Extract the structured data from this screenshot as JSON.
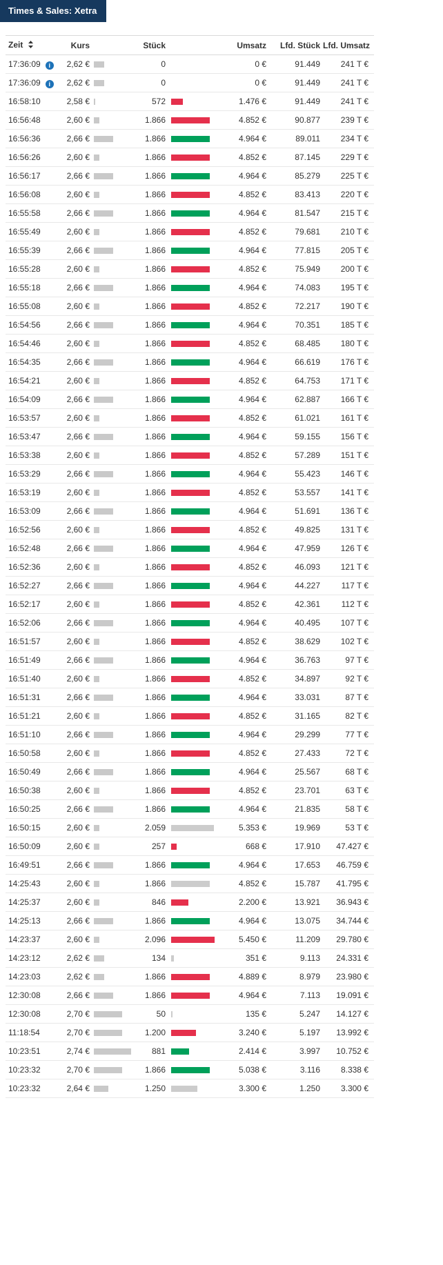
{
  "window": {
    "title": "Times & Sales: Xetra"
  },
  "colors": {
    "title_bg": "#16395e",
    "up_bar": "#00a05a",
    "down_bar": "#e5304c",
    "neutral_bar": "#cccccc",
    "price_bar": "#c9c9c9",
    "info_icon": "#1d72b8",
    "row_border": "#e8e8e8"
  },
  "table": {
    "columns": [
      {
        "key": "zeit",
        "label": "Zeit",
        "sortable": true
      },
      {
        "key": "kurs",
        "label": "Kurs"
      },
      {
        "key": "stueck",
        "label": "Stück"
      },
      {
        "key": "umsatz",
        "label": "Umsatz"
      },
      {
        "key": "lfd_stueck",
        "label": "Lfd. Stück"
      },
      {
        "key": "lfd_umsatz",
        "label": "Lfd. Umsatz"
      }
    ],
    "rows": [
      {
        "zeit": "17:36:09",
        "info": true,
        "kurs": "2,62 €",
        "kurs_val": 2.62,
        "stueck": "0",
        "stueck_val": 0,
        "dir": "none",
        "umsatz": "0 €",
        "lfd_stueck": "91.449",
        "lfd_umsatz": "241 T €"
      },
      {
        "zeit": "17:36:09",
        "info": true,
        "kurs": "2,62 €",
        "kurs_val": 2.62,
        "stueck": "0",
        "stueck_val": 0,
        "dir": "none",
        "umsatz": "0 €",
        "lfd_stueck": "91.449",
        "lfd_umsatz": "241 T €"
      },
      {
        "zeit": "16:58:10",
        "kurs": "2,58 €",
        "kurs_val": 2.58,
        "stueck": "572",
        "stueck_val": 572,
        "dir": "down",
        "umsatz": "1.476 €",
        "lfd_stueck": "91.449",
        "lfd_umsatz": "241 T €"
      },
      {
        "zeit": "16:56:48",
        "kurs": "2,60 €",
        "kurs_val": 2.6,
        "stueck": "1.866",
        "stueck_val": 1866,
        "dir": "down",
        "umsatz": "4.852 €",
        "lfd_stueck": "90.877",
        "lfd_umsatz": "239 T €"
      },
      {
        "zeit": "16:56:36",
        "kurs": "2,66 €",
        "kurs_val": 2.66,
        "stueck": "1.866",
        "stueck_val": 1866,
        "dir": "up",
        "umsatz": "4.964 €",
        "lfd_stueck": "89.011",
        "lfd_umsatz": "234 T €"
      },
      {
        "zeit": "16:56:26",
        "kurs": "2,60 €",
        "kurs_val": 2.6,
        "stueck": "1.866",
        "stueck_val": 1866,
        "dir": "down",
        "umsatz": "4.852 €",
        "lfd_stueck": "87.145",
        "lfd_umsatz": "229 T €"
      },
      {
        "zeit": "16:56:17",
        "kurs": "2,66 €",
        "kurs_val": 2.66,
        "stueck": "1.866",
        "stueck_val": 1866,
        "dir": "up",
        "umsatz": "4.964 €",
        "lfd_stueck": "85.279",
        "lfd_umsatz": "225 T €"
      },
      {
        "zeit": "16:56:08",
        "kurs": "2,60 €",
        "kurs_val": 2.6,
        "stueck": "1.866",
        "stueck_val": 1866,
        "dir": "down",
        "umsatz": "4.852 €",
        "lfd_stueck": "83.413",
        "lfd_umsatz": "220 T €"
      },
      {
        "zeit": "16:55:58",
        "kurs": "2,66 €",
        "kurs_val": 2.66,
        "stueck": "1.866",
        "stueck_val": 1866,
        "dir": "up",
        "umsatz": "4.964 €",
        "lfd_stueck": "81.547",
        "lfd_umsatz": "215 T €"
      },
      {
        "zeit": "16:55:49",
        "kurs": "2,60 €",
        "kurs_val": 2.6,
        "stueck": "1.866",
        "stueck_val": 1866,
        "dir": "down",
        "umsatz": "4.852 €",
        "lfd_stueck": "79.681",
        "lfd_umsatz": "210 T €"
      },
      {
        "zeit": "16:55:39",
        "kurs": "2,66 €",
        "kurs_val": 2.66,
        "stueck": "1.866",
        "stueck_val": 1866,
        "dir": "up",
        "umsatz": "4.964 €",
        "lfd_stueck": "77.815",
        "lfd_umsatz": "205 T €"
      },
      {
        "zeit": "16:55:28",
        "kurs": "2,60 €",
        "kurs_val": 2.6,
        "stueck": "1.866",
        "stueck_val": 1866,
        "dir": "down",
        "umsatz": "4.852 €",
        "lfd_stueck": "75.949",
        "lfd_umsatz": "200 T €"
      },
      {
        "zeit": "16:55:18",
        "kurs": "2,66 €",
        "kurs_val": 2.66,
        "stueck": "1.866",
        "stueck_val": 1866,
        "dir": "up",
        "umsatz": "4.964 €",
        "lfd_stueck": "74.083",
        "lfd_umsatz": "195 T €"
      },
      {
        "zeit": "16:55:08",
        "kurs": "2,60 €",
        "kurs_val": 2.6,
        "stueck": "1.866",
        "stueck_val": 1866,
        "dir": "down",
        "umsatz": "4.852 €",
        "lfd_stueck": "72.217",
        "lfd_umsatz": "190 T €"
      },
      {
        "zeit": "16:54:56",
        "kurs": "2,66 €",
        "kurs_val": 2.66,
        "stueck": "1.866",
        "stueck_val": 1866,
        "dir": "up",
        "umsatz": "4.964 €",
        "lfd_stueck": "70.351",
        "lfd_umsatz": "185 T €"
      },
      {
        "zeit": "16:54:46",
        "kurs": "2,60 €",
        "kurs_val": 2.6,
        "stueck": "1.866",
        "stueck_val": 1866,
        "dir": "down",
        "umsatz": "4.852 €",
        "lfd_stueck": "68.485",
        "lfd_umsatz": "180 T €"
      },
      {
        "zeit": "16:54:35",
        "kurs": "2,66 €",
        "kurs_val": 2.66,
        "stueck": "1.866",
        "stueck_val": 1866,
        "dir": "up",
        "umsatz": "4.964 €",
        "lfd_stueck": "66.619",
        "lfd_umsatz": "176 T €"
      },
      {
        "zeit": "16:54:21",
        "kurs": "2,60 €",
        "kurs_val": 2.6,
        "stueck": "1.866",
        "stueck_val": 1866,
        "dir": "down",
        "umsatz": "4.852 €",
        "lfd_stueck": "64.753",
        "lfd_umsatz": "171 T €"
      },
      {
        "zeit": "16:54:09",
        "kurs": "2,66 €",
        "kurs_val": 2.66,
        "stueck": "1.866",
        "stueck_val": 1866,
        "dir": "up",
        "umsatz": "4.964 €",
        "lfd_stueck": "62.887",
        "lfd_umsatz": "166 T €"
      },
      {
        "zeit": "16:53:57",
        "kurs": "2,60 €",
        "kurs_val": 2.6,
        "stueck": "1.866",
        "stueck_val": 1866,
        "dir": "down",
        "umsatz": "4.852 €",
        "lfd_stueck": "61.021",
        "lfd_umsatz": "161 T €"
      },
      {
        "zeit": "16:53:47",
        "kurs": "2,66 €",
        "kurs_val": 2.66,
        "stueck": "1.866",
        "stueck_val": 1866,
        "dir": "up",
        "umsatz": "4.964 €",
        "lfd_stueck": "59.155",
        "lfd_umsatz": "156 T €"
      },
      {
        "zeit": "16:53:38",
        "kurs": "2,60 €",
        "kurs_val": 2.6,
        "stueck": "1.866",
        "stueck_val": 1866,
        "dir": "down",
        "umsatz": "4.852 €",
        "lfd_stueck": "57.289",
        "lfd_umsatz": "151 T €"
      },
      {
        "zeit": "16:53:29",
        "kurs": "2,66 €",
        "kurs_val": 2.66,
        "stueck": "1.866",
        "stueck_val": 1866,
        "dir": "up",
        "umsatz": "4.964 €",
        "lfd_stueck": "55.423",
        "lfd_umsatz": "146 T €"
      },
      {
        "zeit": "16:53:19",
        "kurs": "2,60 €",
        "kurs_val": 2.6,
        "stueck": "1.866",
        "stueck_val": 1866,
        "dir": "down",
        "umsatz": "4.852 €",
        "lfd_stueck": "53.557",
        "lfd_umsatz": "141 T €"
      },
      {
        "zeit": "16:53:09",
        "kurs": "2,66 €",
        "kurs_val": 2.66,
        "stueck": "1.866",
        "stueck_val": 1866,
        "dir": "up",
        "umsatz": "4.964 €",
        "lfd_stueck": "51.691",
        "lfd_umsatz": "136 T €"
      },
      {
        "zeit": "16:52:56",
        "kurs": "2,60 €",
        "kurs_val": 2.6,
        "stueck": "1.866",
        "stueck_val": 1866,
        "dir": "down",
        "umsatz": "4.852 €",
        "lfd_stueck": "49.825",
        "lfd_umsatz": "131 T €"
      },
      {
        "zeit": "16:52:48",
        "kurs": "2,66 €",
        "kurs_val": 2.66,
        "stueck": "1.866",
        "stueck_val": 1866,
        "dir": "up",
        "umsatz": "4.964 €",
        "lfd_stueck": "47.959",
        "lfd_umsatz": "126 T €"
      },
      {
        "zeit": "16:52:36",
        "kurs": "2,60 €",
        "kurs_val": 2.6,
        "stueck": "1.866",
        "stueck_val": 1866,
        "dir": "down",
        "umsatz": "4.852 €",
        "lfd_stueck": "46.093",
        "lfd_umsatz": "121 T €"
      },
      {
        "zeit": "16:52:27",
        "kurs": "2,66 €",
        "kurs_val": 2.66,
        "stueck": "1.866",
        "stueck_val": 1866,
        "dir": "up",
        "umsatz": "4.964 €",
        "lfd_stueck": "44.227",
        "lfd_umsatz": "117 T €"
      },
      {
        "zeit": "16:52:17",
        "kurs": "2,60 €",
        "kurs_val": 2.6,
        "stueck": "1.866",
        "stueck_val": 1866,
        "dir": "down",
        "umsatz": "4.852 €",
        "lfd_stueck": "42.361",
        "lfd_umsatz": "112 T €"
      },
      {
        "zeit": "16:52:06",
        "kurs": "2,66 €",
        "kurs_val": 2.66,
        "stueck": "1.866",
        "stueck_val": 1866,
        "dir": "up",
        "umsatz": "4.964 €",
        "lfd_stueck": "40.495",
        "lfd_umsatz": "107 T €"
      },
      {
        "zeit": "16:51:57",
        "kurs": "2,60 €",
        "kurs_val": 2.6,
        "stueck": "1.866",
        "stueck_val": 1866,
        "dir": "down",
        "umsatz": "4.852 €",
        "lfd_stueck": "38.629",
        "lfd_umsatz": "102 T €"
      },
      {
        "zeit": "16:51:49",
        "kurs": "2,66 €",
        "kurs_val": 2.66,
        "stueck": "1.866",
        "stueck_val": 1866,
        "dir": "up",
        "umsatz": "4.964 €",
        "lfd_stueck": "36.763",
        "lfd_umsatz": "97 T €"
      },
      {
        "zeit": "16:51:40",
        "kurs": "2,60 €",
        "kurs_val": 2.6,
        "stueck": "1.866",
        "stueck_val": 1866,
        "dir": "down",
        "umsatz": "4.852 €",
        "lfd_stueck": "34.897",
        "lfd_umsatz": "92 T €"
      },
      {
        "zeit": "16:51:31",
        "kurs": "2,66 €",
        "kurs_val": 2.66,
        "stueck": "1.866",
        "stueck_val": 1866,
        "dir": "up",
        "umsatz": "4.964 €",
        "lfd_stueck": "33.031",
        "lfd_umsatz": "87 T €"
      },
      {
        "zeit": "16:51:21",
        "kurs": "2,60 €",
        "kurs_val": 2.6,
        "stueck": "1.866",
        "stueck_val": 1866,
        "dir": "down",
        "umsatz": "4.852 €",
        "lfd_stueck": "31.165",
        "lfd_umsatz": "82 T €"
      },
      {
        "zeit": "16:51:10",
        "kurs": "2,66 €",
        "kurs_val": 2.66,
        "stueck": "1.866",
        "stueck_val": 1866,
        "dir": "up",
        "umsatz": "4.964 €",
        "lfd_stueck": "29.299",
        "lfd_umsatz": "77 T €"
      },
      {
        "zeit": "16:50:58",
        "kurs": "2,60 €",
        "kurs_val": 2.6,
        "stueck": "1.866",
        "stueck_val": 1866,
        "dir": "down",
        "umsatz": "4.852 €",
        "lfd_stueck": "27.433",
        "lfd_umsatz": "72 T €"
      },
      {
        "zeit": "16:50:49",
        "kurs": "2,66 €",
        "kurs_val": 2.66,
        "stueck": "1.866",
        "stueck_val": 1866,
        "dir": "up",
        "umsatz": "4.964 €",
        "lfd_stueck": "25.567",
        "lfd_umsatz": "68 T €"
      },
      {
        "zeit": "16:50:38",
        "kurs": "2,60 €",
        "kurs_val": 2.6,
        "stueck": "1.866",
        "stueck_val": 1866,
        "dir": "down",
        "umsatz": "4.852 €",
        "lfd_stueck": "23.701",
        "lfd_umsatz": "63 T €"
      },
      {
        "zeit": "16:50:25",
        "kurs": "2,66 €",
        "kurs_val": 2.66,
        "stueck": "1.866",
        "stueck_val": 1866,
        "dir": "up",
        "umsatz": "4.964 €",
        "lfd_stueck": "21.835",
        "lfd_umsatz": "58 T €"
      },
      {
        "zeit": "16:50:15",
        "kurs": "2,60 €",
        "kurs_val": 2.6,
        "stueck": "2.059",
        "stueck_val": 2059,
        "dir": "neutral",
        "umsatz": "5.353 €",
        "lfd_stueck": "19.969",
        "lfd_umsatz": "53 T €"
      },
      {
        "zeit": "16:50:09",
        "kurs": "2,60 €",
        "kurs_val": 2.6,
        "stueck": "257",
        "stueck_val": 257,
        "dir": "down",
        "umsatz": "668 €",
        "lfd_stueck": "17.910",
        "lfd_umsatz": "47.427 €"
      },
      {
        "zeit": "16:49:51",
        "kurs": "2,66 €",
        "kurs_val": 2.66,
        "stueck": "1.866",
        "stueck_val": 1866,
        "dir": "up",
        "umsatz": "4.964 €",
        "lfd_stueck": "17.653",
        "lfd_umsatz": "46.759 €"
      },
      {
        "zeit": "14:25:43",
        "kurs": "2,60 €",
        "kurs_val": 2.6,
        "stueck": "1.866",
        "stueck_val": 1866,
        "dir": "neutral",
        "umsatz": "4.852 €",
        "lfd_stueck": "15.787",
        "lfd_umsatz": "41.795 €"
      },
      {
        "zeit": "14:25:37",
        "kurs": "2,60 €",
        "kurs_val": 2.6,
        "stueck": "846",
        "stueck_val": 846,
        "dir": "down",
        "umsatz": "2.200 €",
        "lfd_stueck": "13.921",
        "lfd_umsatz": "36.943 €"
      },
      {
        "zeit": "14:25:13",
        "kurs": "2,66 €",
        "kurs_val": 2.66,
        "stueck": "1.866",
        "stueck_val": 1866,
        "dir": "up",
        "umsatz": "4.964 €",
        "lfd_stueck": "13.075",
        "lfd_umsatz": "34.744 €"
      },
      {
        "zeit": "14:23:37",
        "kurs": "2,60 €",
        "kurs_val": 2.6,
        "stueck": "2.096",
        "stueck_val": 2096,
        "dir": "down",
        "umsatz": "5.450 €",
        "lfd_stueck": "11.209",
        "lfd_umsatz": "29.780 €"
      },
      {
        "zeit": "14:23:12",
        "kurs": "2,62 €",
        "kurs_val": 2.62,
        "stueck": "134",
        "stueck_val": 134,
        "dir": "neutral",
        "umsatz": "351 €",
        "lfd_stueck": "9.113",
        "lfd_umsatz": "24.331 €"
      },
      {
        "zeit": "14:23:03",
        "kurs": "2,62 €",
        "kurs_val": 2.62,
        "stueck": "1.866",
        "stueck_val": 1866,
        "dir": "down",
        "umsatz": "4.889 €",
        "lfd_stueck": "8.979",
        "lfd_umsatz": "23.980 €"
      },
      {
        "zeit": "12:30:08",
        "kurs": "2,66 €",
        "kurs_val": 2.66,
        "stueck": "1.866",
        "stueck_val": 1866,
        "dir": "down",
        "umsatz": "4.964 €",
        "lfd_stueck": "7.113",
        "lfd_umsatz": "19.091 €"
      },
      {
        "zeit": "12:30:08",
        "kurs": "2,70 €",
        "kurs_val": 2.7,
        "stueck": "50",
        "stueck_val": 50,
        "dir": "neutral",
        "umsatz": "135 €",
        "lfd_stueck": "5.247",
        "lfd_umsatz": "14.127 €"
      },
      {
        "zeit": "11:18:54",
        "kurs": "2,70 €",
        "kurs_val": 2.7,
        "stueck": "1.200",
        "stueck_val": 1200,
        "dir": "down",
        "umsatz": "3.240 €",
        "lfd_stueck": "5.197",
        "lfd_umsatz": "13.992 €"
      },
      {
        "zeit": "10:23:51",
        "kurs": "2,74 €",
        "kurs_val": 2.74,
        "stueck": "881",
        "stueck_val": 881,
        "dir": "up",
        "umsatz": "2.414 €",
        "lfd_stueck": "3.997",
        "lfd_umsatz": "10.752 €"
      },
      {
        "zeit": "10:23:32",
        "kurs": "2,70 €",
        "kurs_val": 2.7,
        "stueck": "1.866",
        "stueck_val": 1866,
        "dir": "up",
        "umsatz": "5.038 €",
        "lfd_stueck": "3.116",
        "lfd_umsatz": "8.338 €"
      },
      {
        "zeit": "10:23:32",
        "kurs": "2,64 €",
        "kurs_val": 2.64,
        "stueck": "1.250",
        "stueck_val": 1250,
        "dir": "neutral",
        "umsatz": "3.300 €",
        "lfd_stueck": "1.250",
        "lfd_umsatz": "3.300 €"
      }
    ]
  }
}
